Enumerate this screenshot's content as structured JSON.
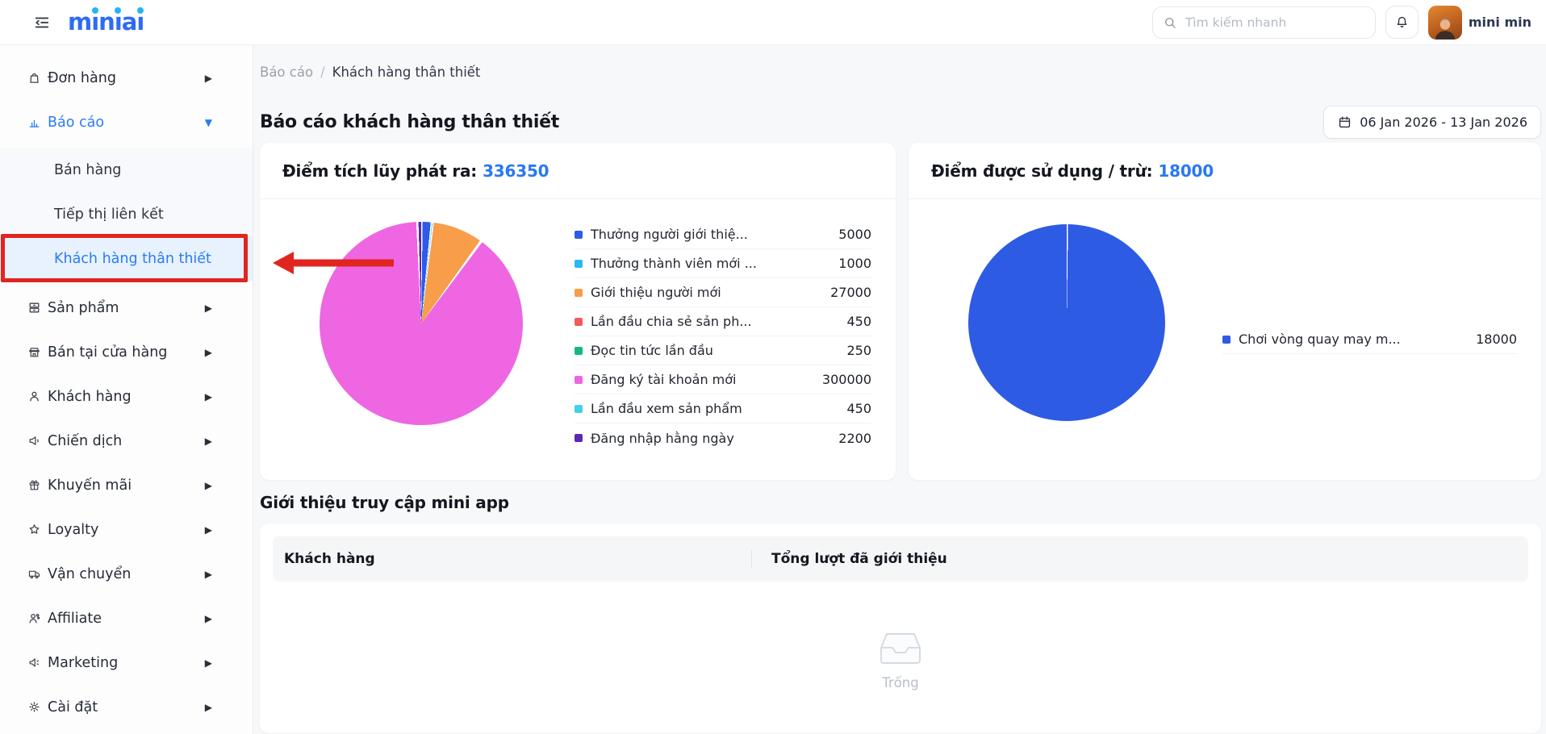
{
  "header": {
    "logo": "miniai",
    "search_placeholder": "Tìm kiếm nhanh",
    "user_name": "mini min"
  },
  "sidebar": {
    "items": [
      {
        "label": "Đơn hàng",
        "icon": "order-bag-icon"
      },
      {
        "label": "Báo cáo",
        "icon": "report-chart-icon",
        "expanded": true,
        "active": true,
        "children": [
          {
            "label": "Bán hàng"
          },
          {
            "label": "Tiếp thị liên kết"
          },
          {
            "label": "Khách hàng thân thiết",
            "active": true
          }
        ]
      },
      {
        "label": "Sản phẩm",
        "icon": "product-icon"
      },
      {
        "label": "Bán tại cửa hàng",
        "icon": "store-icon"
      },
      {
        "label": "Khách hàng",
        "icon": "customer-icon"
      },
      {
        "label": "Chiến dịch",
        "icon": "campaign-megaphone-icon"
      },
      {
        "label": "Khuyến mãi",
        "icon": "promotion-gift-icon"
      },
      {
        "label": "Loyalty",
        "icon": "loyalty-star-icon"
      },
      {
        "label": "Vận chuyển",
        "icon": "shipping-truck-icon"
      },
      {
        "label": "Affiliate",
        "icon": "affiliate-icon"
      },
      {
        "label": "Marketing",
        "icon": "marketing-speaker-icon"
      },
      {
        "label": "Cài đặt",
        "icon": "settings-gear-icon"
      }
    ]
  },
  "breadcrumb": {
    "parent": "Báo cáo",
    "separator": "/",
    "current": "Khách hàng thân thiết"
  },
  "page": {
    "title": "Báo cáo khách hàng thân thiết",
    "date_range": "06 Jan 2026 - 13 Jan 2026"
  },
  "cards": {
    "issued": {
      "title": "Điểm tích lũy phát ra:",
      "value": "336350"
    },
    "used": {
      "title": "Điểm được sử dụng / trừ:",
      "value": "18000"
    }
  },
  "referral_section": {
    "title": "Giới thiệu truy cập mini app",
    "columns": [
      "Khách hàng",
      "Tổng lượt đã giới thiệu"
    ],
    "empty_text": "Trống",
    "rows": []
  },
  "chart_data": [
    {
      "type": "pie",
      "title": "Điểm tích lũy phát ra",
      "total": 336350,
      "legend_position": "right",
      "series": [
        {
          "name": "Thưởng người giới thiệ...",
          "value": 5000,
          "color": "#2d5be8"
        },
        {
          "name": "Thưởng thành viên mới ...",
          "value": 1000,
          "color": "#29b6f2"
        },
        {
          "name": "Giới thiệu người mới",
          "value": 27000,
          "color": "#f89d49"
        },
        {
          "name": "Lần đầu chia sẻ sản ph...",
          "value": 450,
          "color": "#f4595c"
        },
        {
          "name": "Đọc tin tức lần đầu",
          "value": 250,
          "color": "#12b886"
        },
        {
          "name": "Đăng ký tài khoản mới",
          "value": 300000,
          "color": "#ee66e2"
        },
        {
          "name": "Lần đầu xem sản phẩm",
          "value": 450,
          "color": "#45d0e8"
        },
        {
          "name": "Đăng nhập hằng ngày",
          "value": 2200,
          "color": "#5a28b5"
        }
      ]
    },
    {
      "type": "pie",
      "title": "Điểm được sử dụng / trừ",
      "total": 18000,
      "legend_position": "right",
      "series": [
        {
          "name": "Chơi vòng quay may m...",
          "value": 18000,
          "color": "#2e5be4"
        }
      ]
    }
  ],
  "colors": {
    "accent_blue": "#2879f0",
    "sidebar_active_blue": "#2b7bf5",
    "logo_blue": "#2d6cf2",
    "logo_dot_cyan": "#28b4f4",
    "annotation_red": "#e02520",
    "active_item_bg": "#e7f2fe",
    "page_bg": "#f7f8f9"
  }
}
